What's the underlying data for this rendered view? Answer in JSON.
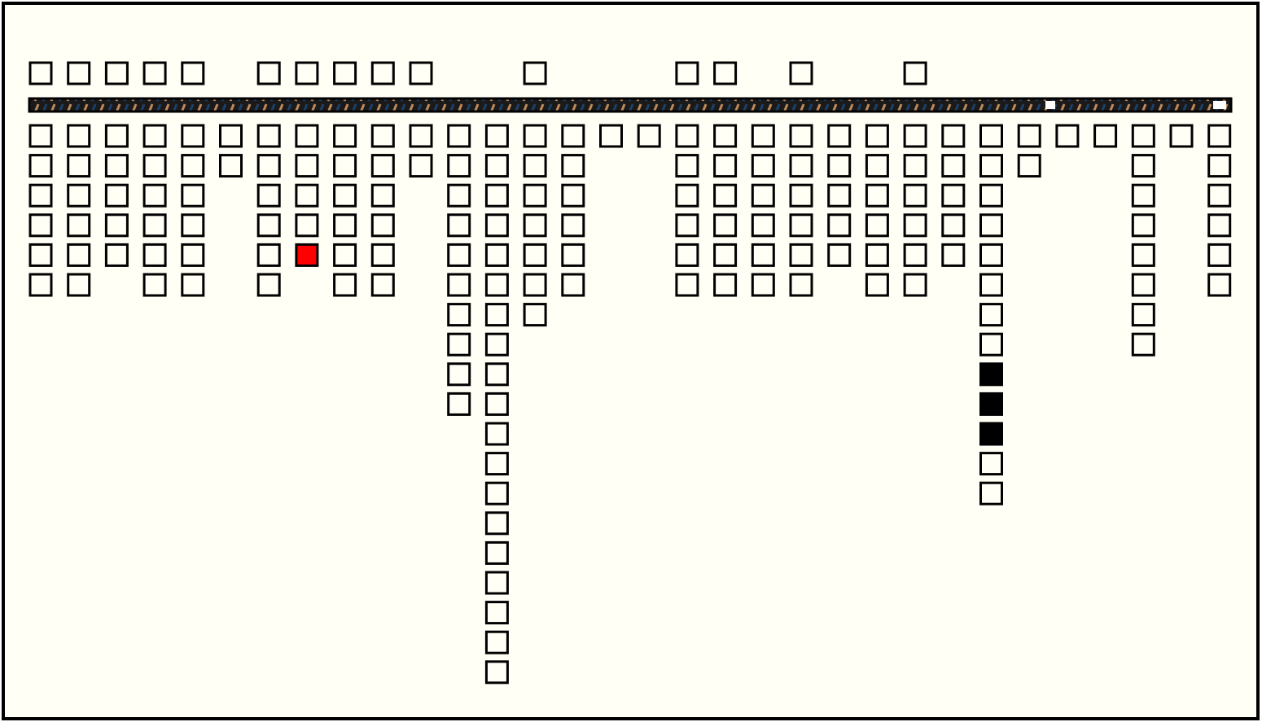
{
  "columns": [
    {
      "marker": true,
      "cells": 6
    },
    {
      "marker": true,
      "cells": 6
    },
    {
      "marker": true,
      "cells": 5
    },
    {
      "marker": true,
      "cells": 6
    },
    {
      "marker": true,
      "cells": 6
    },
    {
      "marker": false,
      "cells": 2
    },
    {
      "marker": true,
      "cells": 6
    },
    {
      "marker": true,
      "cells": 5,
      "red": [
        4
      ]
    },
    {
      "marker": true,
      "cells": 6
    },
    {
      "marker": true,
      "cells": 6
    },
    {
      "marker": true,
      "cells": 2
    },
    {
      "marker": false,
      "cells": 10
    },
    {
      "marker": false,
      "cells": 19
    },
    {
      "marker": true,
      "cells": 7
    },
    {
      "marker": false,
      "cells": 6
    },
    {
      "marker": false,
      "cells": 1
    },
    {
      "marker": false,
      "cells": 1
    },
    {
      "marker": true,
      "cells": 6
    },
    {
      "marker": true,
      "cells": 6
    },
    {
      "marker": false,
      "cells": 6
    },
    {
      "marker": true,
      "cells": 6
    },
    {
      "marker": false,
      "cells": 5
    },
    {
      "marker": false,
      "cells": 6
    },
    {
      "marker": true,
      "cells": 6
    },
    {
      "marker": false,
      "cells": 5
    },
    {
      "marker": false,
      "cells": 13,
      "black": [
        8,
        9,
        10
      ]
    },
    {
      "marker": false,
      "cells": 2
    },
    {
      "marker": false,
      "cells": 1
    },
    {
      "marker": false,
      "cells": 1
    },
    {
      "marker": false,
      "cells": 8
    },
    {
      "marker": false,
      "cells": 1
    },
    {
      "marker": false,
      "cells": 6
    }
  ]
}
